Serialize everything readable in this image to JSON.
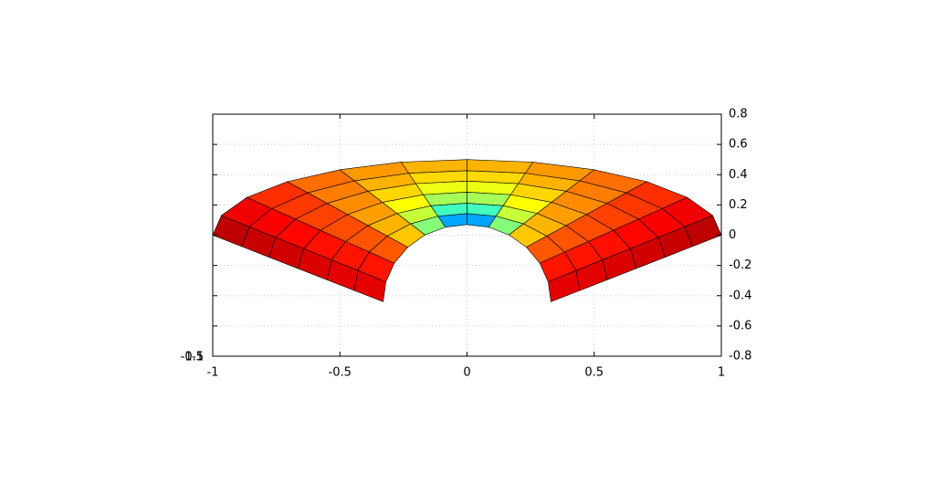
{
  "chart_data": {
    "type": "surface",
    "xlim": [
      -1,
      1
    ],
    "xticks": [
      -1,
      -0.5,
      0,
      0.5,
      1
    ],
    "ylim": [
      -0.8,
      0.8
    ],
    "yticks": [
      -0.8,
      -0.6,
      -0.4,
      -0.2,
      0,
      0.2,
      0.4,
      0.6,
      0.8
    ],
    "zticks": [
      -1.5,
      -1,
      -0.5
    ],
    "grid": true,
    "colormap": "jet",
    "clim": [
      0,
      1
    ],
    "s": [
      0,
      0.17,
      0.33,
      0.5,
      0.67,
      0.83,
      1
    ],
    "inner": {
      "x": [
        -0.33,
        -0.319,
        -0.286,
        -0.233,
        -0.165,
        -0.085,
        0,
        0.085,
        0.165,
        0.233,
        0.286,
        0.319,
        0.33
      ],
      "y": [
        -0.44,
        -0.308,
        -0.185,
        -0.079,
        0.002,
        0.053,
        0.07,
        0.053,
        0.002,
        -0.079,
        -0.185,
        -0.308,
        -0.44
      ]
    },
    "outer": {
      "x": [
        -1,
        -0.966,
        -0.866,
        -0.707,
        -0.5,
        -0.259,
        0,
        0.259,
        0.5,
        0.707,
        0.866,
        0.966,
        1
      ],
      "y": [
        0,
        0.13,
        0.25,
        0.354,
        0.433,
        0.483,
        0.5,
        0.483,
        0.433,
        0.354,
        0.25,
        0.13,
        0
      ]
    },
    "z": [
      [
        0.92,
        0.88,
        0.83,
        0.75,
        0.6,
        0.35,
        0.05,
        0.35,
        0.6,
        0.75,
        0.83,
        0.88,
        0.92
      ],
      [
        0.92,
        0.88,
        0.83,
        0.75,
        0.62,
        0.45,
        0.3,
        0.45,
        0.62,
        0.75,
        0.83,
        0.88,
        0.92
      ],
      [
        0.93,
        0.88,
        0.83,
        0.76,
        0.66,
        0.55,
        0.45,
        0.55,
        0.66,
        0.76,
        0.83,
        0.88,
        0.93
      ],
      [
        0.94,
        0.89,
        0.84,
        0.77,
        0.69,
        0.6,
        0.55,
        0.6,
        0.69,
        0.77,
        0.84,
        0.89,
        0.94
      ],
      [
        0.95,
        0.9,
        0.85,
        0.78,
        0.71,
        0.66,
        0.62,
        0.66,
        0.71,
        0.78,
        0.85,
        0.9,
        0.95
      ],
      [
        0.96,
        0.91,
        0.86,
        0.79,
        0.73,
        0.7,
        0.67,
        0.7,
        0.73,
        0.79,
        0.86,
        0.91,
        0.96
      ],
      [
        0.97,
        0.92,
        0.87,
        0.8,
        0.75,
        0.72,
        0.7,
        0.72,
        0.75,
        0.8,
        0.87,
        0.92,
        0.97
      ]
    ]
  }
}
